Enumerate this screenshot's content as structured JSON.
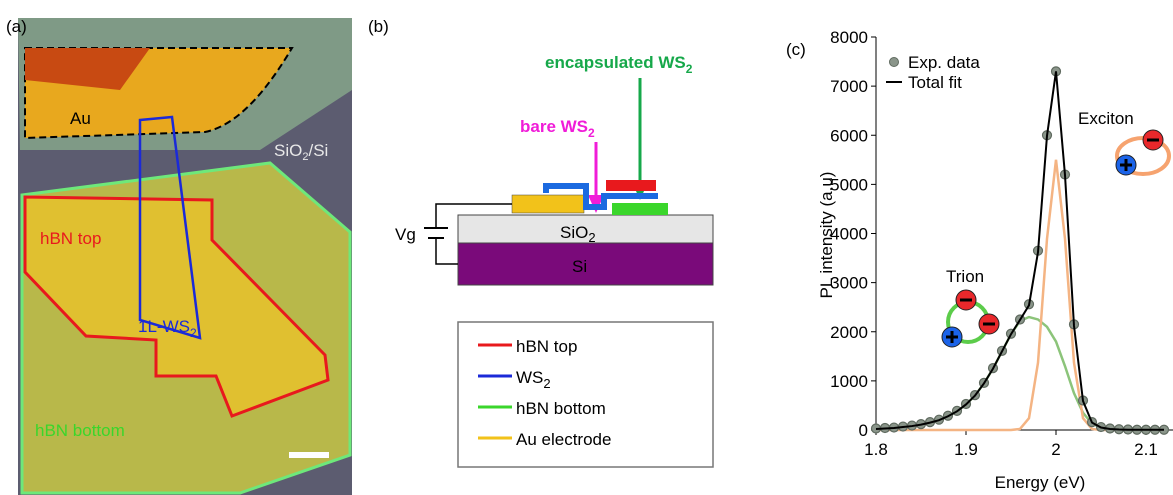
{
  "panel_a": {
    "label": "(a)",
    "au": "Au",
    "substrate": {
      "text": "SiO",
      "sub": "2",
      "rest": "/Si"
    },
    "hbn_top": "hBN top",
    "ws2": {
      "text": "1L-WS",
      "sub": "2"
    },
    "hbn_bottom": "hBN bottom"
  },
  "panel_b": {
    "label": "(b)",
    "encapsulated": {
      "text": "encapsulated WS",
      "sub": "2"
    },
    "bare": {
      "text": "bare WS",
      "sub": "2"
    },
    "gate": "Vg",
    "oxide": {
      "text": "SiO",
      "sub": "2"
    },
    "silicon": "Si",
    "legend": [
      {
        "text": "hBN top",
        "color": "#e8191d"
      },
      {
        "text": "WS",
        "sub": "2",
        "color": "#1b2ad8"
      },
      {
        "text": "hBN bottom",
        "color": "#3ad62b"
      },
      {
        "text": "Au electrode",
        "color": "#f2c21a"
      }
    ]
  },
  "chart_data": {
    "type": "line",
    "label": "(c)",
    "x_label": "Energy (eV)",
    "y_label": "PL intensity (a.u)",
    "x": [
      1.8,
      1.81,
      1.82,
      1.83,
      1.84,
      1.85,
      1.86,
      1.87,
      1.88,
      1.89,
      1.9,
      1.91,
      1.92,
      1.93,
      1.94,
      1.95,
      1.96,
      1.97,
      1.98,
      1.99,
      2.0,
      2.01,
      2.02,
      2.03,
      2.04,
      2.05,
      2.06,
      2.07,
      2.08,
      2.09,
      2.1,
      2.11,
      2.12
    ],
    "series": [
      {
        "name": "Exp. data",
        "style": "markers",
        "color": "#5f6a5f",
        "values": [
          30,
          40,
          50,
          70,
          90,
          120,
          160,
          210,
          290,
          390,
          530,
          710,
          960,
          1260,
          1610,
          1960,
          2250,
          2560,
          3650,
          6000,
          7300,
          5200,
          2150,
          600,
          160,
          60,
          30,
          15,
          10,
          5,
          5,
          5,
          5
        ]
      },
      {
        "name": "Total fit",
        "style": "line",
        "color": "#000000",
        "values": [
          20,
          30,
          40,
          60,
          80,
          110,
          150,
          200,
          280,
          380,
          520,
          700,
          950,
          1250,
          1600,
          1950,
          2241,
          2540,
          3620,
          5990,
          7300,
          5190,
          2120,
          590,
          151,
          50,
          20,
          10,
          5,
          5,
          5,
          5,
          5
        ]
      },
      {
        "style": "line",
        "color": "#8cc47a",
        "values": [
          20,
          30,
          40,
          60,
          80,
          110,
          150,
          200,
          280,
          380,
          520,
          700,
          950,
          1250,
          1600,
          1950,
          2220,
          2300,
          2250,
          2100,
          1800,
          1300,
          750,
          350,
          130,
          50,
          20,
          10,
          5,
          5,
          5,
          5,
          5
        ]
      },
      {
        "style": "line",
        "color": "#f4b483",
        "values": [
          0,
          0,
          0,
          0,
          0,
          0,
          0,
          0,
          0,
          0,
          0,
          0,
          0,
          0,
          0,
          0,
          21,
          240,
          1370,
          3890,
          5500,
          3890,
          1370,
          240,
          21,
          0,
          0,
          0,
          0,
          0,
          0,
          0,
          0
        ]
      }
    ],
    "xlim": [
      1.8,
      2.13
    ],
    "ylim": [
      0,
      8000
    ],
    "xticks": [
      1.8,
      1.9,
      2,
      2.1
    ],
    "yticks": [
      0,
      1000,
      2000,
      3000,
      4000,
      5000,
      6000,
      7000,
      8000
    ],
    "annotations": [
      "Exciton",
      "Trion"
    ]
  }
}
